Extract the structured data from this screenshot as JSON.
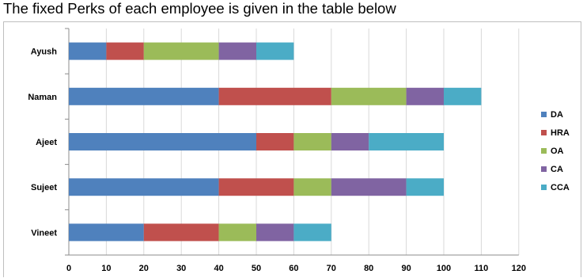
{
  "heading": "The fixed Perks of each employee is given in the table below",
  "chart_data": {
    "type": "bar",
    "orientation": "horizontal",
    "stacked": true,
    "title": "",
    "xlabel": "",
    "ylabel": "",
    "categories": [
      "Ayush",
      "Naman",
      "Ajeet",
      "Sujeet",
      "Vineet"
    ],
    "series": [
      {
        "name": "DA",
        "color": "#4f81bd",
        "values": [
          10,
          40,
          50,
          40,
          20
        ]
      },
      {
        "name": "HRA",
        "color": "#c0504d",
        "values": [
          10,
          30,
          10,
          20,
          20
        ]
      },
      {
        "name": "OA",
        "color": "#9bbb59",
        "values": [
          20,
          20,
          10,
          10,
          10
        ]
      },
      {
        "name": "CA",
        "color": "#8064a2",
        "values": [
          10,
          10,
          10,
          20,
          10
        ]
      },
      {
        "name": "CCA",
        "color": "#4bacc6",
        "values": [
          10,
          10,
          20,
          10,
          10
        ]
      }
    ],
    "xlim": [
      0,
      120
    ],
    "xticks": [
      "0",
      "10",
      "20",
      "30",
      "40",
      "50",
      "60",
      "70",
      "80",
      "90",
      "100",
      "110",
      "120"
    ],
    "grid": true,
    "legend_position": "right"
  }
}
